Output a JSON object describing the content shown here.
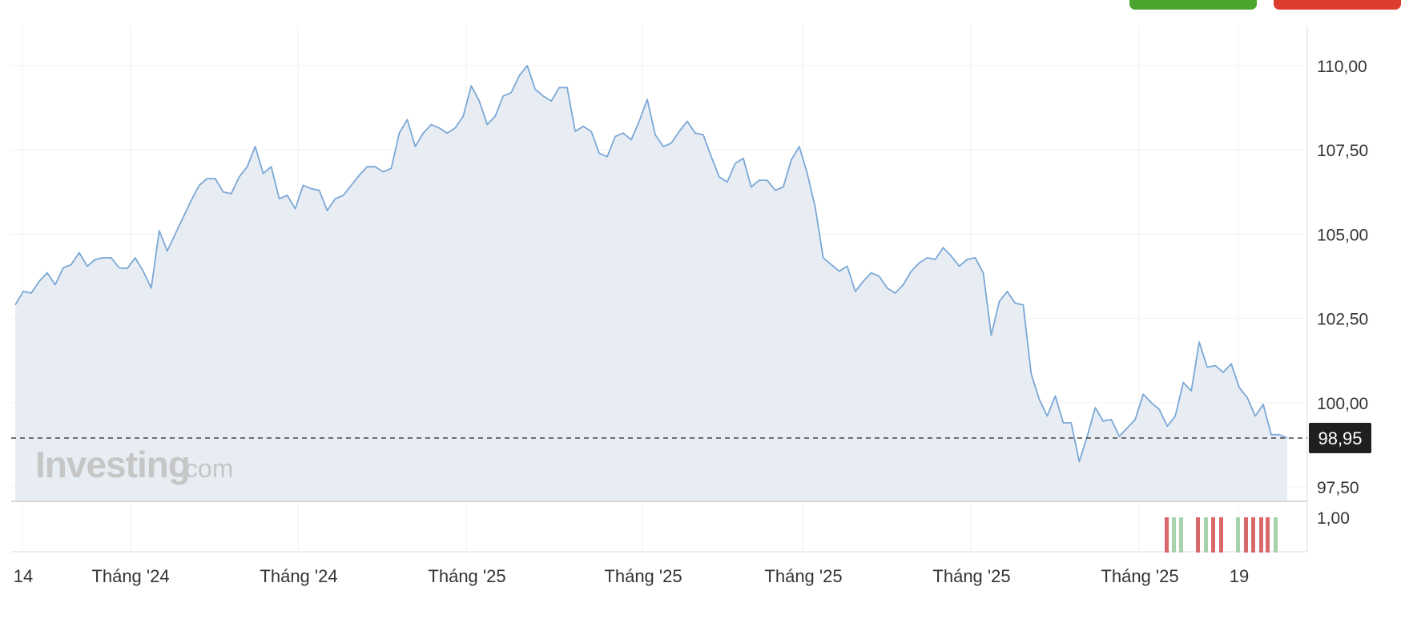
{
  "toolbar": {
    "buy_color": "#4aa52e",
    "sell_color": "#dc3d2f"
  },
  "watermark": {
    "brand": "Investing",
    "suffix": ".com"
  },
  "colors": {
    "line": "#7aa8d6",
    "area": "#e8edf4",
    "current_price_bg": "#1f1f1f",
    "volume_up": "#a6d3ac",
    "volume_down": "#d8686a"
  },
  "chart_data": {
    "type": "area",
    "title": "",
    "xlabel": "",
    "ylabel": "",
    "y_ticks": [
      "110,00",
      "107,50",
      "105,00",
      "102,50",
      "100,00",
      "97,50"
    ],
    "y_tick_values": [
      110,
      107.5,
      105,
      102.5,
      100,
      97.5
    ],
    "ylim": [
      97,
      111
    ],
    "x_ticks": [
      "14",
      "Tháng '24",
      "Tháng '24",
      "Tháng '25",
      "Tháng '25",
      "Tháng '25",
      "Tháng '25",
      "Tháng '25",
      "19"
    ],
    "current_price": 98.95,
    "current_price_label": "98,95",
    "volume_axis_label": "1,00",
    "grid": true,
    "values": [
      102.9,
      103.3,
      103.25,
      103.6,
      103.85,
      103.5,
      104.0,
      104.1,
      104.45,
      104.05,
      104.25,
      104.3,
      104.3,
      104.0,
      103.98,
      104.3,
      103.9,
      103.4,
      105.1,
      104.5,
      105.0,
      105.5,
      106.0,
      106.45,
      106.65,
      106.65,
      106.25,
      106.2,
      106.7,
      107.0,
      107.6,
      106.8,
      107.0,
      106.05,
      106.15,
      105.75,
      106.45,
      106.35,
      106.3,
      105.7,
      106.05,
      106.15,
      106.45,
      106.75,
      107.0,
      107.0,
      106.85,
      106.95,
      108.0,
      108.4,
      107.6,
      108.0,
      108.25,
      108.15,
      108.0,
      108.15,
      108.5,
      109.4,
      108.95,
      108.25,
      108.5,
      109.1,
      109.2,
      109.7,
      110.0,
      109.3,
      109.1,
      108.95,
      109.35,
      109.35,
      108.05,
      108.2,
      108.05,
      107.4,
      107.3,
      107.9,
      108.0,
      107.8,
      108.35,
      109.0,
      107.95,
      107.6,
      107.7,
      108.05,
      108.35,
      108.0,
      107.95,
      107.3,
      106.7,
      106.55,
      107.1,
      107.25,
      106.4,
      106.6,
      106.6,
      106.3,
      106.4,
      107.2,
      107.6,
      106.8,
      105.8,
      104.3,
      104.1,
      103.9,
      104.05,
      103.3,
      103.6,
      103.85,
      103.75,
      103.4,
      103.25,
      103.5,
      103.9,
      104.15,
      104.3,
      104.25,
      104.6,
      104.35,
      104.05,
      104.25,
      104.3,
      103.85,
      102.0,
      103.0,
      103.3,
      102.95,
      102.9,
      100.85,
      100.1,
      99.6,
      100.2,
      99.4,
      99.4,
      98.25,
      99.0,
      99.85,
      99.45,
      99.5,
      99.0,
      99.25,
      99.5,
      100.25,
      100.0,
      99.8,
      99.3,
      99.6,
      100.6,
      100.35,
      101.8,
      101.05,
      101.1,
      100.9,
      101.15,
      100.45,
      100.15,
      99.6,
      99.95,
      99.05,
      99.05,
      98.95
    ],
    "volume_bars": [
      "down",
      "up",
      "up",
      "down",
      "up",
      "down",
      "down",
      "up",
      "down",
      "down",
      "down",
      "down",
      "up"
    ]
  }
}
